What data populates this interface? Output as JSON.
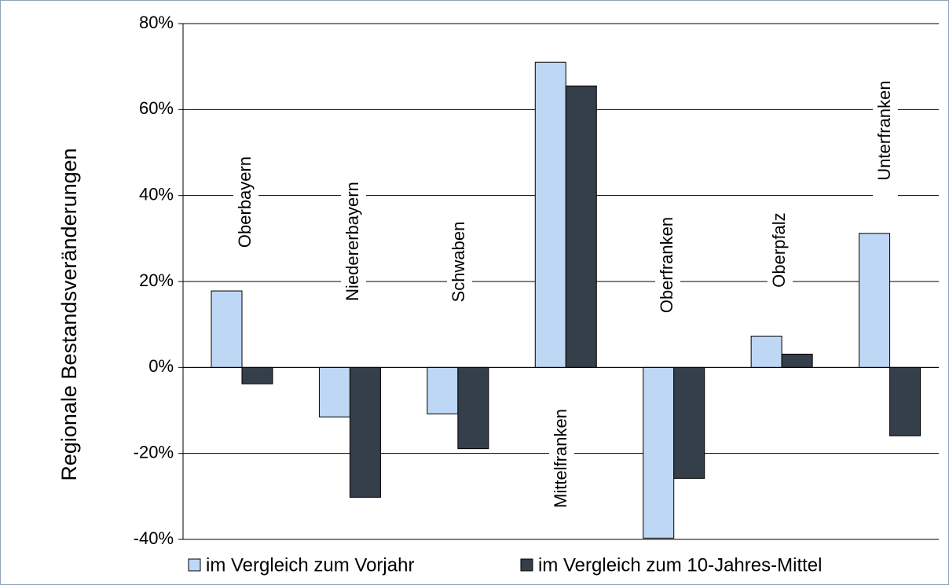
{
  "chart_data": {
    "type": "bar",
    "y_label": "Regionale Bestandsveränderungen",
    "categories": [
      "Oberbayern",
      "Niedererbayern",
      "Schwaben",
      "Mittelfranken",
      "Oberfranken",
      "Oberpfalz",
      "Unterfranken"
    ],
    "series": [
      {
        "name": "im Vergleich zum Vorjahr",
        "color": "#bdd7f5",
        "values": [
          17.8,
          -11.5,
          -10.8,
          71.0,
          -39.7,
          7.3,
          31.2
        ]
      },
      {
        "name": "im Vergleich zum 10-Jahres-Mittel",
        "color": "#353f4a",
        "values": [
          -3.8,
          -30.2,
          -18.9,
          65.5,
          -25.8,
          3.1,
          -15.9
        ]
      }
    ],
    "ylim": [
      -40,
      80
    ],
    "yticks": [
      {
        "value": -40,
        "label": "-40%"
      },
      {
        "value": -20,
        "label": "-20%"
      },
      {
        "value": 0,
        "label": "0%"
      },
      {
        "value": 20,
        "label": "20%"
      },
      {
        "value": 40,
        "label": "40%"
      },
      {
        "value": 60,
        "label": "60%"
      },
      {
        "value": 80,
        "label": "80%"
      }
    ],
    "grid": true,
    "legend": "bottom"
  }
}
